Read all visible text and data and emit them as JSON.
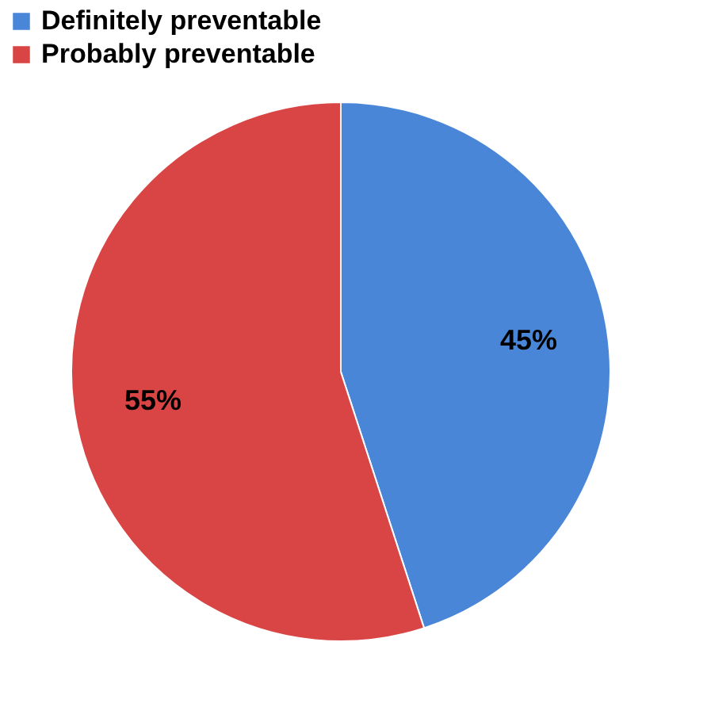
{
  "chart_data": {
    "type": "pie",
    "categories": [
      "Definitely preventable",
      "Probably preventable"
    ],
    "values": [
      45,
      55
    ],
    "colors": [
      "#4a86d8",
      "#d94444"
    ],
    "value_labels": [
      "45%",
      "55%"
    ],
    "legend": "top"
  }
}
